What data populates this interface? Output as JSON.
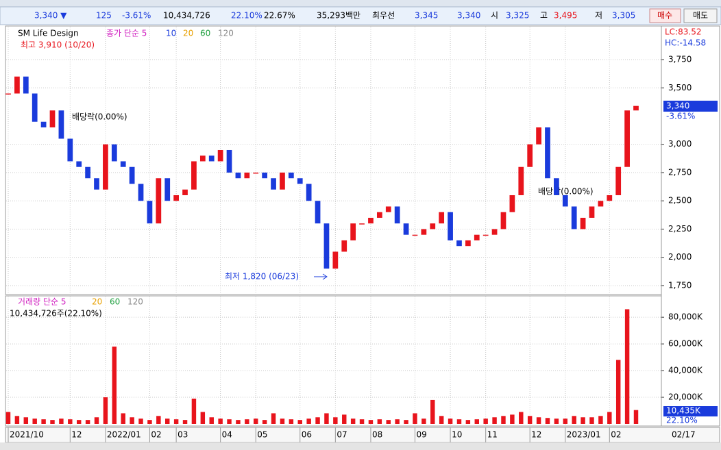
{
  "info_bar": {
    "price": "3,340 ▼",
    "change": "125",
    "change_pct": "-3.61%",
    "volume": "10,434,726",
    "turnover_pct": "22.10%",
    "pct2": "22.67%",
    "amount": "35,293백만",
    "best_label": "최우선",
    "ask": "3,345",
    "bid": "3,340",
    "open_label": "시",
    "open": "3,325",
    "high_label": "고",
    "high": "3,495",
    "low_label": "저",
    "low": "3,305",
    "buy": "매수",
    "sell": "매도"
  },
  "price_pane": {
    "title": "SM Life Design",
    "legend": [
      "종가 단순 5",
      "10",
      "20",
      "60",
      "120"
    ],
    "high_note": "최고 3,910 (10/20)",
    "low_note": "최저 1,820 (06/23)",
    "dividend_notes": [
      "배당락(0.00%)",
      "배당락(0.00%)"
    ],
    "lc": "LC:83.52",
    "hc": "HC:-14.58",
    "last_label": "3,340",
    "last_pct": "-3.61%"
  },
  "volume_pane": {
    "legend": [
      "거래량 단순 5",
      "20",
      "60",
      "120"
    ],
    "note": "10,434,726주(22.10%)",
    "last_label": "10,435K",
    "last_pct": "22.10%"
  },
  "last_date": "02/17",
  "chart_data": [
    {
      "type": "candlestick",
      "values": [
        3450,
        3600,
        3450,
        3200,
        3150,
        3300,
        3050,
        2850,
        2800,
        2700,
        2600,
        3000,
        2850,
        2800,
        2650,
        2500,
        2300,
        2700,
        2500,
        2550,
        2600,
        2850,
        2900,
        2850,
        2950,
        2750,
        2700,
        2750,
        2750,
        2700,
        2600,
        2750,
        2700,
        2650,
        2500,
        2300,
        1900,
        2050,
        2150,
        2300,
        2300,
        2350,
        2400,
        2450,
        2300,
        2200,
        2200,
        2250,
        2300,
        2400,
        2150,
        2100,
        2150,
        2200,
        2200,
        2250,
        2400,
        2550,
        2800,
        3000,
        3150,
        2700,
        2550,
        2450,
        2250,
        2350,
        2450,
        2500,
        2550,
        2800,
        3300,
        3340
      ],
      "up_color": "#e8141c",
      "down_color": "#1a3bdc",
      "ylim": [
        1683,
        4035
      ],
      "yticks": [
        {
          "value": 3750,
          "label": "3,750"
        },
        {
          "value": 3500,
          "label": "3,500"
        },
        {
          "value": 3000,
          "label": "3,000"
        },
        {
          "value": 2750,
          "label": "2,750"
        },
        {
          "value": 2500,
          "label": "2,500"
        },
        {
          "value": 2250,
          "label": "2,250"
        },
        {
          "value": 2000,
          "label": "2,000"
        },
        {
          "value": 1750,
          "label": "1,750"
        }
      ],
      "grid": true
    },
    {
      "type": "bar",
      "categories": [
        "2021/10",
        null,
        null,
        null,
        null,
        null,
        null,
        "12",
        null,
        null,
        null,
        "2022/01",
        null,
        null,
        null,
        null,
        "02",
        null,
        null,
        "03",
        null,
        null,
        null,
        null,
        "04",
        null,
        null,
        null,
        "05",
        null,
        null,
        null,
        null,
        "06",
        null,
        null,
        null,
        "07",
        null,
        null,
        null,
        "08",
        null,
        null,
        null,
        null,
        "09",
        null,
        null,
        null,
        "10",
        null,
        null,
        null,
        "11",
        null,
        null,
        null,
        null,
        "12",
        null,
        null,
        null,
        "2023/01",
        null,
        null,
        null,
        null,
        "02",
        null,
        null,
        null
      ],
      "values": [
        9000,
        6000,
        5000,
        4000,
        3500,
        3000,
        4000,
        3500,
        3000,
        3000,
        5000,
        20000,
        58000,
        8000,
        5000,
        4000,
        3000,
        6000,
        4000,
        3500,
        3000,
        19000,
        9000,
        5000,
        4000,
        3500,
        3000,
        3500,
        4000,
        3000,
        8000,
        4000,
        3500,
        3000,
        4000,
        5000,
        8000,
        5000,
        7000,
        4000,
        3500,
        3000,
        3500,
        3000,
        3500,
        3000,
        8000,
        4000,
        18000,
        6000,
        4000,
        3500,
        3000,
        3500,
        4000,
        5000,
        6000,
        7000,
        9000,
        6000,
        5000,
        4500,
        4000,
        4000,
        6000,
        5000,
        5000,
        6000,
        9000,
        48000,
        86000,
        10435
      ],
      "color": "#e8141c",
      "ylim": [
        0,
        96000
      ],
      "yticks": [
        {
          "value": 80000,
          "label": "80,000K"
        },
        {
          "value": 60000,
          "label": "60,000K"
        },
        {
          "value": 40000,
          "label": "40,000K"
        },
        {
          "value": 20000,
          "label": "20,000K"
        }
      ],
      "grid": true
    }
  ]
}
